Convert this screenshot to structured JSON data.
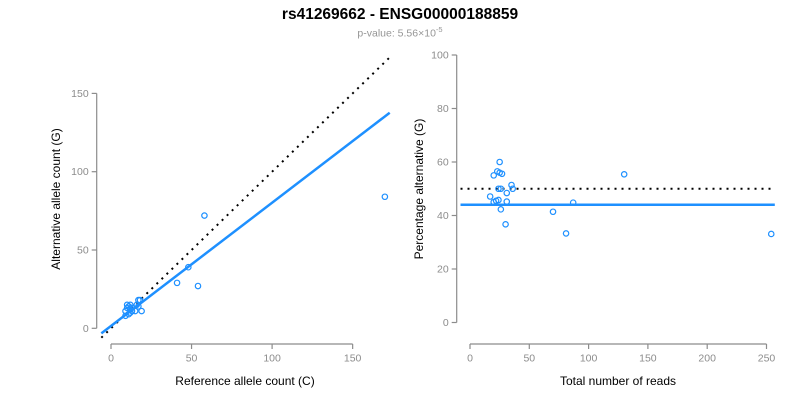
{
  "header": {
    "title": "rs41269662 - ENSG00000188859",
    "p_value_prefix": "p-value: 5.56×10",
    "p_value_exponent": "-5"
  },
  "colors": {
    "accent_blue": "#1E90FF",
    "dotted_line": "#000000",
    "axis_line": "#8C8C8C",
    "tick_label": "#8C8C8C",
    "subtitle_gray": "#969696"
  },
  "chart_data": [
    {
      "type": "scatter",
      "name": "allele-count-scatter",
      "xlabel": "Reference allele count (C)",
      "ylabel": "Alternative allele count (G)",
      "xlim": [
        -7,
        174
      ],
      "ylim": [
        -7,
        174
      ],
      "xticks": [
        0,
        50,
        100,
        150
      ],
      "yticks": [
        0,
        50,
        100,
        150
      ],
      "grid": false,
      "marker": "open-circle",
      "point_color": "#1E90FF",
      "points": [
        [
          10,
          15
        ],
        [
          10,
          13
        ],
        [
          11,
          14
        ],
        [
          12,
          15
        ],
        [
          9,
          11
        ],
        [
          12,
          12
        ],
        [
          13,
          13
        ],
        [
          17,
          18
        ],
        [
          18,
          18
        ],
        [
          9,
          8
        ],
        [
          16,
          15
        ],
        [
          13,
          11
        ],
        [
          11,
          9
        ],
        [
          12,
          10
        ],
        [
          17,
          14
        ],
        [
          15,
          11
        ],
        [
          19,
          11
        ],
        [
          41,
          29
        ],
        [
          48,
          39
        ],
        [
          54,
          27
        ],
        [
          58,
          72
        ],
        [
          170,
          84
        ]
      ],
      "lines": [
        {
          "name": "identity-line",
          "style": "dotted",
          "color": "#000000",
          "slope": 1,
          "intercept": 0,
          "x_from": -6,
          "x_to": 173
        },
        {
          "name": "regression-line",
          "style": "solid",
          "color": "#1E90FF",
          "slope": 0.787,
          "intercept": 1.5,
          "x_from": -6,
          "x_to": 173
        }
      ]
    },
    {
      "type": "scatter",
      "name": "percentage-alternative-scatter",
      "xlabel": "Total number of reads",
      "ylabel": "Percentage alternative (G)",
      "xlim": [
        -9,
        266
      ],
      "ylim": [
        0,
        100
      ],
      "xticks": [
        0,
        50,
        100,
        150,
        200,
        250
      ],
      "yticks": [
        0,
        20,
        40,
        60,
        80,
        100
      ],
      "grid": false,
      "marker": "open-circle",
      "point_color": "#1E90FF",
      "points": [
        [
          25,
          60.0
        ],
        [
          23,
          56.5
        ],
        [
          25,
          56.0
        ],
        [
          27,
          55.6
        ],
        [
          20,
          55.0
        ],
        [
          24,
          50.0
        ],
        [
          26,
          50.0
        ],
        [
          35,
          51.4
        ],
        [
          36,
          50.0
        ],
        [
          17,
          47.1
        ],
        [
          31,
          48.4
        ],
        [
          24,
          45.8
        ],
        [
          20,
          45.0
        ],
        [
          22,
          45.5
        ],
        [
          31,
          45.2
        ],
        [
          26,
          42.3
        ],
        [
          30,
          36.7
        ],
        [
          70,
          41.4
        ],
        [
          87,
          44.8
        ],
        [
          81,
          33.3
        ],
        [
          130,
          55.4
        ],
        [
          254,
          33.1
        ]
      ],
      "lines": [
        {
          "name": "expected-50pct-line",
          "style": "dotted",
          "color": "#000000",
          "slope": 0,
          "intercept": 50,
          "x_from": -8,
          "x_to": 257
        },
        {
          "name": "fitted-percentage-line",
          "style": "solid",
          "color": "#1E90FF",
          "slope": 0,
          "intercept": 44,
          "x_from": -8,
          "x_to": 257
        }
      ]
    }
  ]
}
